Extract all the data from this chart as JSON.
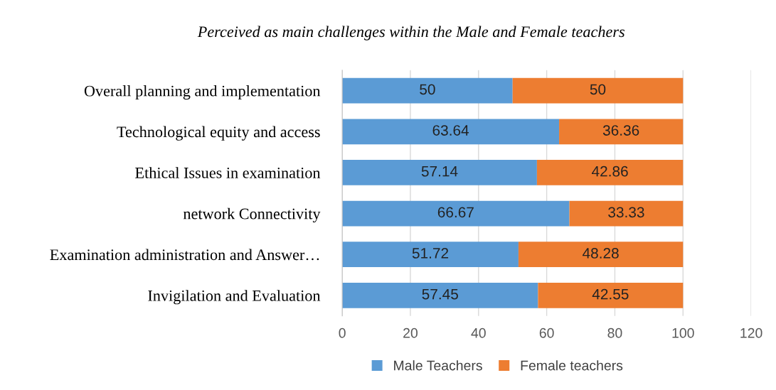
{
  "chart_data": {
    "type": "bar",
    "orientation": "horizontal",
    "stacked": true,
    "title": "Perceived as main challenges within the Male and Female teachers",
    "categories": [
      "Overall planning and implementation",
      "Technological equity and access",
      "Ethical Issues in examination",
      "network Connectivity",
      "Examination administration and Answer…",
      "Invigilation and Evaluation"
    ],
    "series": [
      {
        "name": "Male Teachers",
        "color": "#5b9bd5",
        "values": [
          50,
          63.64,
          57.14,
          66.67,
          51.72,
          57.45
        ]
      },
      {
        "name": "Female teachers",
        "color": "#ed7d31",
        "values": [
          50,
          36.36,
          42.86,
          33.33,
          48.28,
          42.55
        ]
      }
    ],
    "xlim": [
      0,
      120
    ],
    "xticks": [
      0,
      20,
      40,
      60,
      80,
      100,
      120
    ],
    "grid": "x",
    "legend": "bottom",
    "data_labels": true
  }
}
